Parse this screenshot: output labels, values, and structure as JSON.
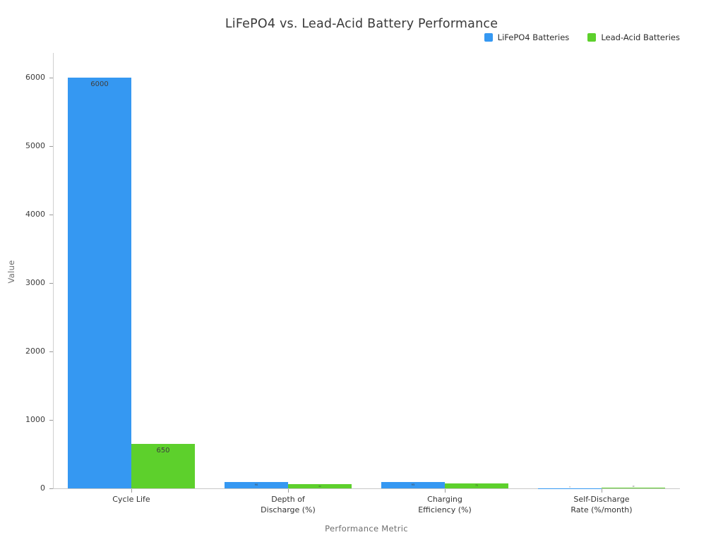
{
  "title": "LiFePO4 vs. Lead-Acid Battery Performance",
  "legend": [
    {
      "label": "LiFePO4 Batteries",
      "color": "#3598f2"
    },
    {
      "label": "Lead-Acid Batteries",
      "color": "#5dd02c"
    }
  ],
  "chart_data": {
    "type": "bar",
    "title": "LiFePO4 vs. Lead-Acid Battery Performance",
    "xlabel": "Performance Metric",
    "ylabel": "Value",
    "categories": [
      "Cycle Life",
      "Depth of\nDischarge (%)",
      "Charging\nEfficiency (%)",
      "Self-Discharge\nRate (%/month)"
    ],
    "series": [
      {
        "name": "LiFePO4 Batteries",
        "color": "#3598f2",
        "values": [
          6000,
          90,
          95,
          3
        ],
        "data_labels": [
          "6000",
          "90",
          "95",
          "3"
        ]
      },
      {
        "name": "Lead-Acid Batteries",
        "color": "#5dd02c",
        "values": [
          650,
          60,
          75,
          10
        ],
        "data_labels": [
          "650",
          "60",
          "75",
          "10"
        ]
      }
    ],
    "yticks": [
      0,
      1000,
      2000,
      3000,
      4000,
      5000,
      6000
    ],
    "ylim": [
      0,
      6300
    ],
    "grid": false,
    "legend_position": "top-right",
    "bar_labels_visible": true
  }
}
